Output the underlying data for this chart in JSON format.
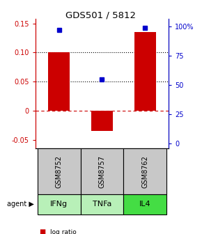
{
  "title": "GDS501 / 5812",
  "samples": [
    "GSM8752",
    "GSM8757",
    "GSM8762"
  ],
  "agents": [
    "IFNg",
    "TNFa",
    "IL4"
  ],
  "log_ratios": [
    0.1,
    -0.035,
    0.135
  ],
  "percentile_ranks": [
    97,
    55,
    99
  ],
  "ylim_left": [
    -0.065,
    0.158
  ],
  "ylim_right": [
    -4.33,
    106.67
  ],
  "yticks_left": [
    -0.05,
    0.0,
    0.05,
    0.1,
    0.15
  ],
  "ytick_labels_left": [
    "-0.05",
    "0",
    "0.05",
    "0.10",
    "0.15"
  ],
  "yticks_right": [
    0,
    25,
    50,
    75,
    100
  ],
  "ytick_labels_right": [
    "0",
    "25",
    "50",
    "75",
    "100%"
  ],
  "hlines_dotted": [
    0.1,
    0.05
  ],
  "hline_dashed": 0.0,
  "bar_color": "#cc0000",
  "dot_color": "#0000cc",
  "sample_box_color": "#c8c8c8",
  "agent_box_colors": [
    "#b8f0b8",
    "#b8f0b8",
    "#44dd44"
  ],
  "bar_width": 0.5,
  "x_positions": [
    0,
    1,
    2
  ],
  "left_axis_color": "#cc0000",
  "right_axis_color": "#0000cc",
  "xlim": [
    -0.55,
    2.55
  ]
}
